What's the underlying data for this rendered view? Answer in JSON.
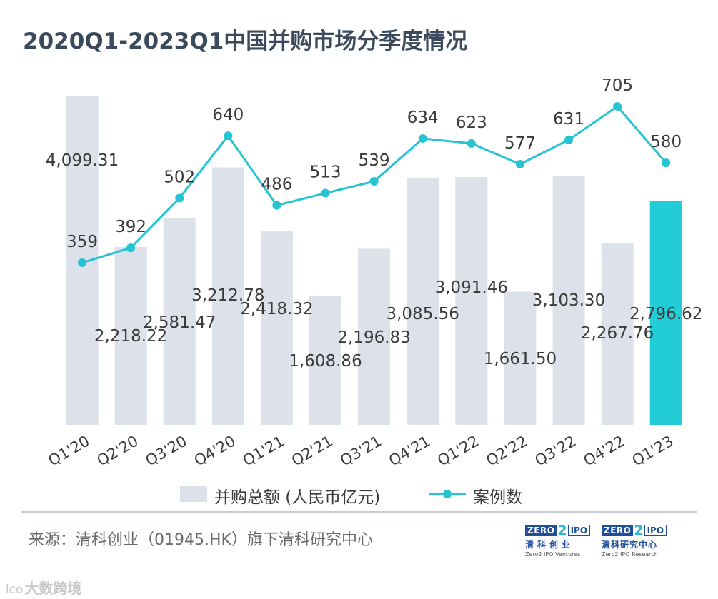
{
  "title": "2020Q1-2023Q1中国并购市场分季度情况",
  "chart_data": {
    "type": "bar",
    "categories": [
      "Q1'20",
      "Q2'20",
      "Q3'20",
      "Q4'20",
      "Q1'21",
      "Q2'21",
      "Q3'21",
      "Q4'21",
      "Q1'22",
      "Q2'22",
      "Q3'22",
      "Q4'22",
      "Q1'23"
    ],
    "series": [
      {
        "name": "并购总额 (人民币亿元)",
        "type": "bar",
        "values": [
          4099.31,
          2218.22,
          2581.47,
          3212.78,
          2418.32,
          1608.86,
          2196.83,
          3085.56,
          3091.46,
          1661.5,
          3103.3,
          2267.76,
          2796.62
        ],
        "labels": [
          "4,099.31",
          "2,218.22",
          "2,581.47",
          "3,212.78",
          "2,418.32",
          "1,608.86",
          "2,196.83",
          "3,085.56",
          "3,091.46",
          "1,661.50",
          "3,103.30",
          "2,267.76",
          "2,796.62"
        ]
      },
      {
        "name": "案例数",
        "type": "line",
        "values": [
          359,
          392,
          502,
          640,
          486,
          513,
          539,
          634,
          623,
          577,
          631,
          705,
          580
        ],
        "labels": [
          "359",
          "392",
          "502",
          "640",
          "486",
          "513",
          "539",
          "634",
          "623",
          "577",
          "631",
          "705",
          "580"
        ]
      }
    ],
    "bar_color": "#dde2ea",
    "highlight_color": "#22cdd8",
    "highlight_index": 12,
    "line_color": "#26c4d2",
    "bar_ylim": [
      0,
      4099.31
    ],
    "line_ylim": [
      0,
      705
    ],
    "grid": false
  },
  "legend": {
    "bar_label": "并购总额 (人民币亿元)",
    "line_label": "案例数"
  },
  "source": "来源：清科创业（01945.HK）旗下清科研究中心",
  "logos": [
    {
      "zero": "ZERO",
      "two": "2",
      "ipo": "IPO",
      "cn": "清科创业",
      "en": "Zero2 IPO Ventures"
    },
    {
      "zero": "ZERO",
      "two": "2",
      "ipo": "IPO",
      "cn": "清科研究中心",
      "en": "Zero2 IPO Research"
    }
  ],
  "watermark": {
    "icon": "lco",
    "text": "大数跨境"
  }
}
